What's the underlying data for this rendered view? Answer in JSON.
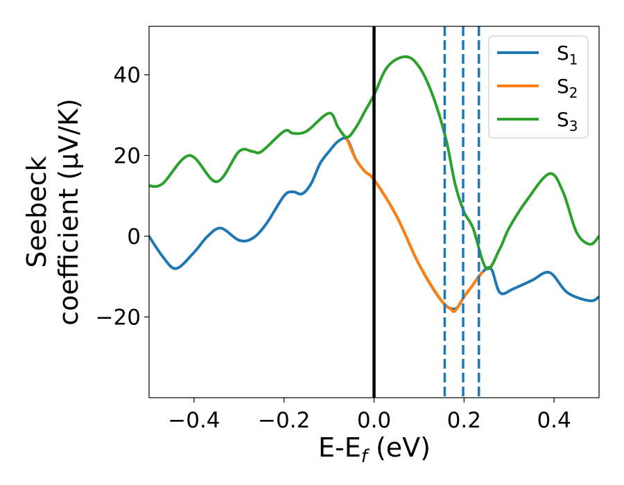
{
  "chart_data": {
    "type": "line",
    "title": "",
    "xlabel": "E-E_f (eV)",
    "xlabel_parts": {
      "main": "E-E",
      "subscript": "f",
      "suffix": " (eV)"
    },
    "ylabel_line1": "Seebeck",
    "ylabel_line2": "coefficient  (μV/K)",
    "xlim": [
      -0.5,
      0.5
    ],
    "ylim": [
      -40,
      52
    ],
    "xticks": [
      -0.4,
      -0.2,
      0.0,
      0.2,
      0.4
    ],
    "xtick_labels": [
      "−0.4",
      "−0.2",
      "0.0",
      "0.2",
      "0.4"
    ],
    "yticks": [
      -20,
      0,
      20,
      40
    ],
    "ytick_labels": [
      "−20",
      "0",
      "20",
      "40"
    ],
    "grid": false,
    "legend_position": "top-right",
    "vertical_lines": [
      {
        "x": 0.0,
        "style": "solid",
        "color": "#000000"
      },
      {
        "x": 0.157,
        "style": "dashed",
        "color": "#1f77b4"
      },
      {
        "x": 0.198,
        "style": "dashed",
        "color": "#1f77b4"
      },
      {
        "x": 0.233,
        "style": "dashed",
        "color": "#1f77b4"
      }
    ],
    "series": [
      {
        "name": "S1",
        "label_main": "S",
        "label_sub": "1",
        "color": "#1f77b4",
        "x": [
          -0.5,
          -0.47,
          -0.44,
          -0.4,
          -0.37,
          -0.34,
          -0.3,
          -0.27,
          -0.24,
          -0.2,
          -0.18,
          -0.16,
          -0.14,
          -0.12,
          -0.1,
          -0.08,
          -0.06,
          -0.04,
          -0.02,
          0.0,
          0.05,
          0.1,
          0.15,
          0.18,
          0.2,
          0.22,
          0.24,
          0.26,
          0.28,
          0.31,
          0.35,
          0.39,
          0.43,
          0.48,
          0.5
        ],
        "y": [
          0,
          -5,
          -8,
          -4,
          0,
          2,
          -1,
          -0.5,
          3,
          10,
          11,
          10.5,
          13,
          18,
          21,
          23.5,
          24,
          19,
          16,
          14,
          5,
          -7,
          -16,
          -18,
          -15,
          -12,
          -9,
          -8,
          -14,
          -13,
          -11,
          -9,
          -14,
          -16,
          -15
        ]
      },
      {
        "name": "S2",
        "label_main": "S",
        "label_sub": "2",
        "color": "#ff7f0e",
        "x": [
          -0.06,
          -0.04,
          -0.02,
          0.0,
          0.05,
          0.1,
          0.15,
          0.17,
          0.18,
          0.2,
          0.22,
          0.24
        ],
        "y": [
          24,
          19,
          16,
          14,
          5,
          -7,
          -16,
          -18,
          -18.5,
          -15,
          -12,
          -9
        ]
      },
      {
        "name": "S3",
        "label_main": "S",
        "label_sub": "3",
        "color": "#2ca02c",
        "x": [
          -0.5,
          -0.47,
          -0.41,
          -0.35,
          -0.3,
          -0.27,
          -0.25,
          -0.2,
          -0.18,
          -0.15,
          -0.1,
          -0.08,
          -0.06,
          -0.04,
          -0.02,
          0.0,
          0.03,
          0.07,
          0.1,
          0.13,
          0.16,
          0.18,
          0.2,
          0.22,
          0.25,
          0.28,
          0.3,
          0.34,
          0.39,
          0.42,
          0.45,
          0.48,
          0.5
        ],
        "y": [
          12.5,
          13,
          20,
          13.5,
          21,
          21,
          21,
          26,
          25.5,
          26,
          30.5,
          27,
          24.5,
          27,
          31,
          35,
          42,
          44.5,
          42,
          35,
          24,
          13,
          6,
          2,
          -8,
          -3,
          2,
          9,
          15.5,
          11,
          1,
          -2,
          0
        ]
      }
    ]
  }
}
